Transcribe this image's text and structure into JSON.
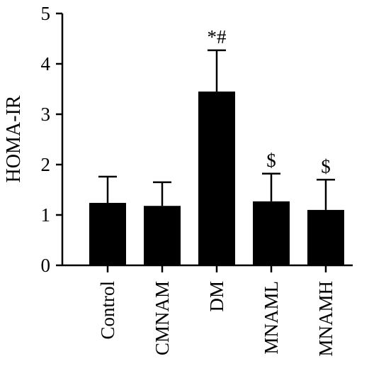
{
  "chart_data": {
    "type": "bar",
    "title": "",
    "xlabel": "",
    "ylabel": "HOMA-IR",
    "ylim": [
      0,
      5
    ],
    "yticks": [
      "0",
      "1",
      "2",
      "3",
      "4",
      "5"
    ],
    "categories": [
      "Control",
      "CMNAM",
      "DM",
      "MNAML",
      "MNAMH"
    ],
    "values": [
      1.24,
      1.18,
      3.45,
      1.27,
      1.1
    ],
    "error_upper": [
      0.52,
      0.47,
      0.82,
      0.55,
      0.6
    ],
    "annotations": [
      "",
      "",
      "*#",
      "$",
      "$"
    ],
    "bar_color": "#000000",
    "grid": false,
    "legend": "none"
  }
}
